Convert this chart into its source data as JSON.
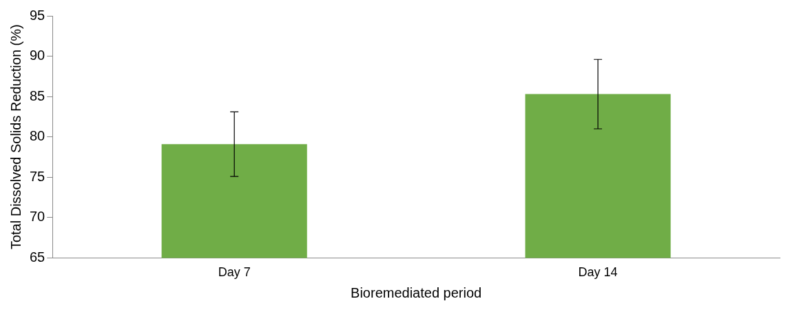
{
  "chart_data": {
    "type": "bar",
    "xlabel": "Bioremediated period",
    "ylabel": "Total Dissolved Solids Reduction (%)",
    "categories": [
      "Day 7",
      "Day 14"
    ],
    "values": [
      79.1,
      85.3
    ],
    "errors": [
      4.0,
      4.3
    ],
    "color": "#70ad47",
    "ylim": [
      65,
      95
    ],
    "yticks": [
      65,
      70,
      75,
      80,
      85,
      90,
      95
    ],
    "grid": false,
    "legend": false
  }
}
